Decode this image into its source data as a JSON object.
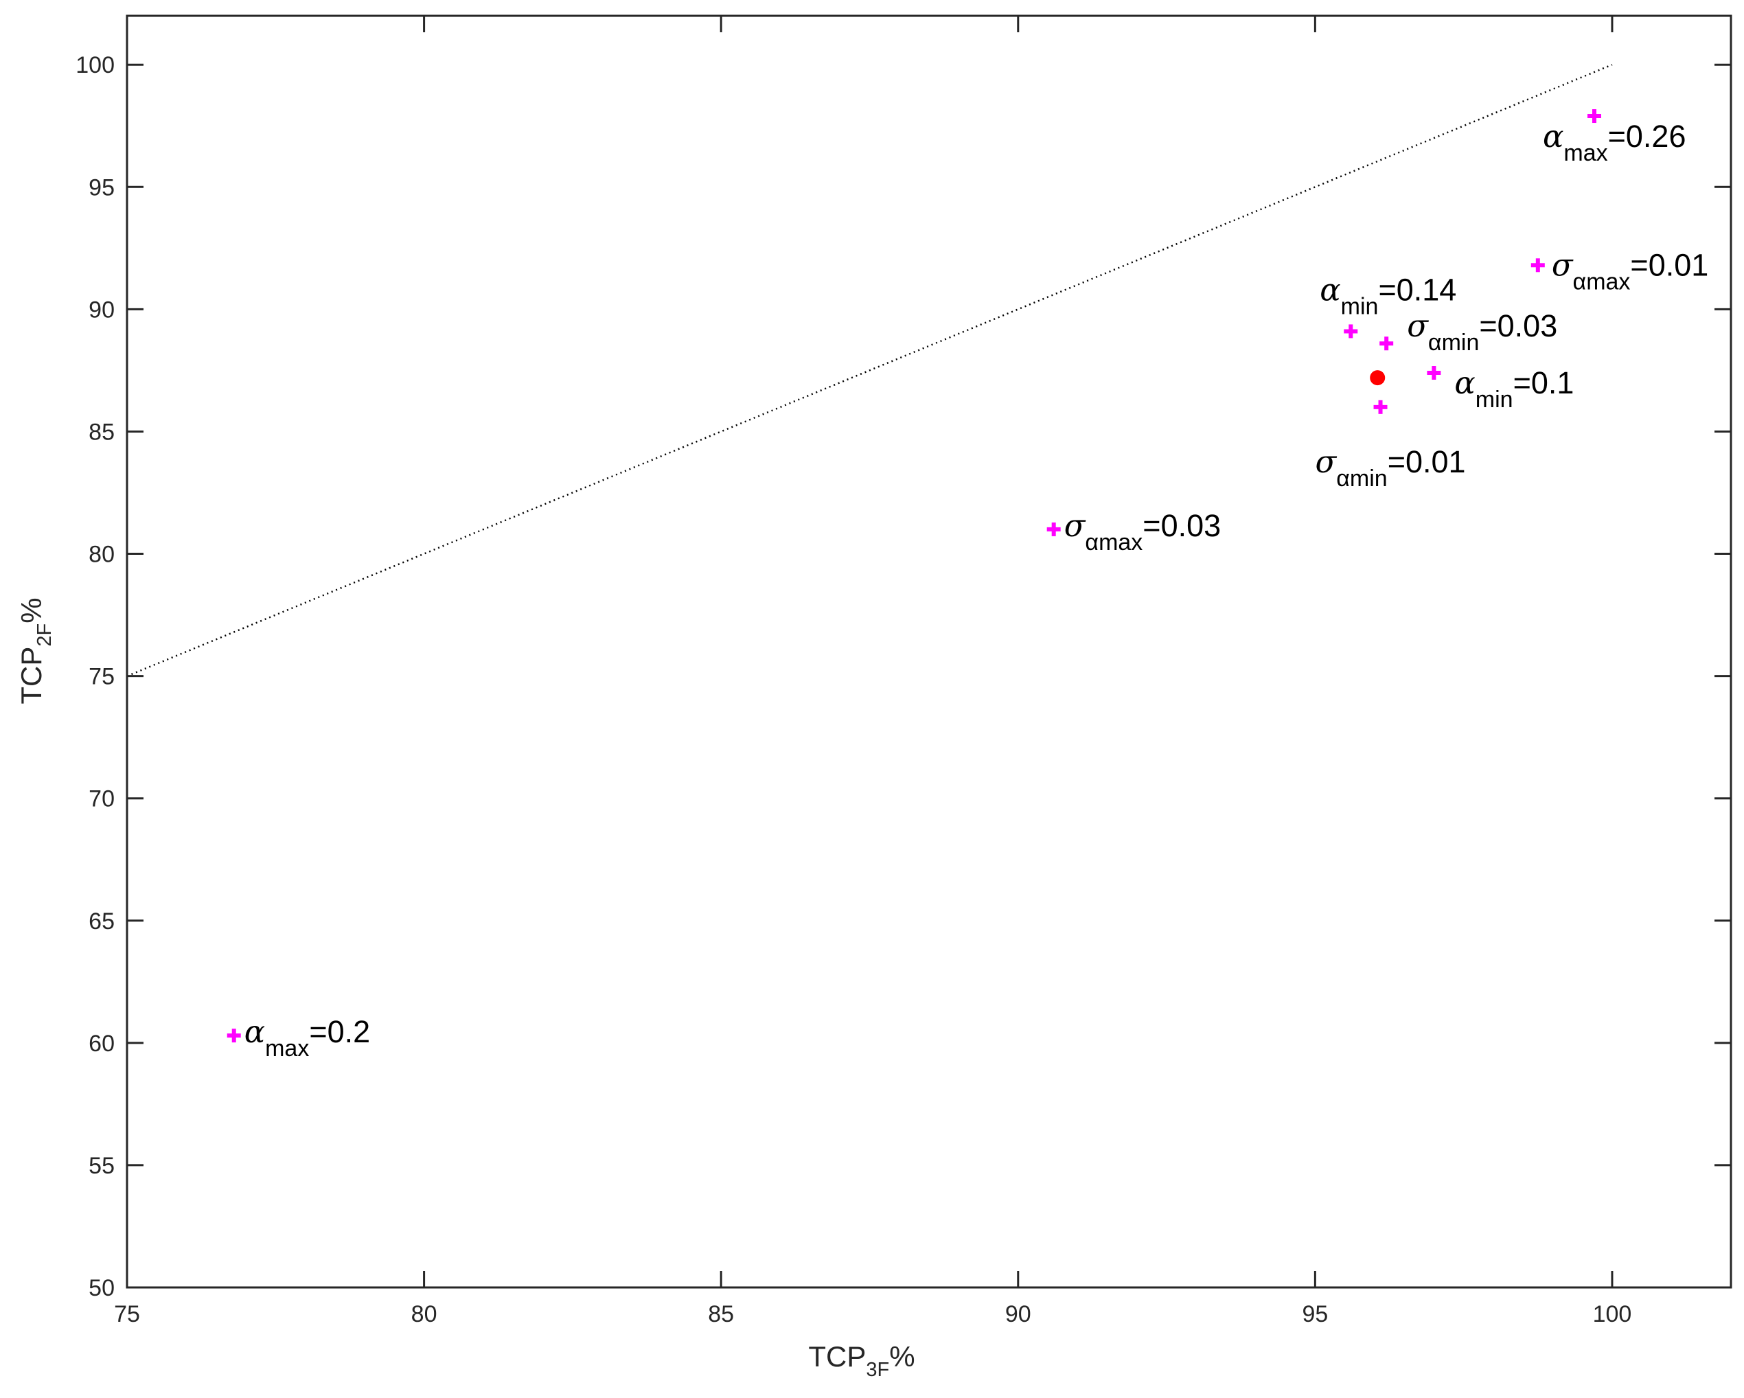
{
  "chart_data": {
    "type": "scatter",
    "title": "",
    "xlabel": {
      "main": "TCP",
      "sub": "3F",
      "suffix": "%"
    },
    "ylabel": {
      "main": "TCP",
      "sub": "2F",
      "suffix": "%"
    },
    "xlim": [
      75,
      102
    ],
    "ylim": [
      50,
      102
    ],
    "xticks": [
      75,
      80,
      85,
      90,
      95,
      100
    ],
    "yticks": [
      50,
      55,
      60,
      65,
      70,
      75,
      80,
      85,
      90,
      95,
      100
    ],
    "grid": false,
    "reference_line": {
      "x": [
        75,
        100
      ],
      "y": [
        75,
        100
      ],
      "style": "dotted"
    },
    "series": [
      {
        "marker": "plus",
        "color": "#ff00ff",
        "points": [
          {
            "x": 99.7,
            "y": 97.9,
            "label": {
              "greek": "α",
              "sub": "max",
              "value": "=0.26"
            }
          },
          {
            "x": 98.75,
            "y": 91.8,
            "label": {
              "greek": "σ",
              "sub": "αmax",
              "value": "=0.01"
            }
          },
          {
            "x": 95.6,
            "y": 89.1,
            "label": {
              "greek": "α",
              "sub": "min",
              "value": "=0.14"
            }
          },
          {
            "x": 96.2,
            "y": 88.6,
            "label": {
              "greek": "σ",
              "sub": "αmin",
              "value": "=0.03"
            }
          },
          {
            "x": 97.0,
            "y": 87.4,
            "label": {
              "greek": "α",
              "sub": "min",
              "value": "=0.1"
            }
          },
          {
            "x": 96.1,
            "y": 86.0,
            "label": {
              "greek": "σ",
              "sub": "αmin",
              "value": "=0.01"
            }
          },
          {
            "x": 90.6,
            "y": 81.0,
            "label": {
              "greek": "σ",
              "sub": "αmax",
              "value": "=0.03"
            }
          },
          {
            "x": 76.8,
            "y": 60.3,
            "label": {
              "greek": "α",
              "sub": "max",
              "value": "=0.2"
            }
          }
        ]
      },
      {
        "marker": "dot",
        "color": "#ff0000",
        "points": [
          {
            "x": 96.05,
            "y": 87.2
          }
        ]
      }
    ]
  }
}
